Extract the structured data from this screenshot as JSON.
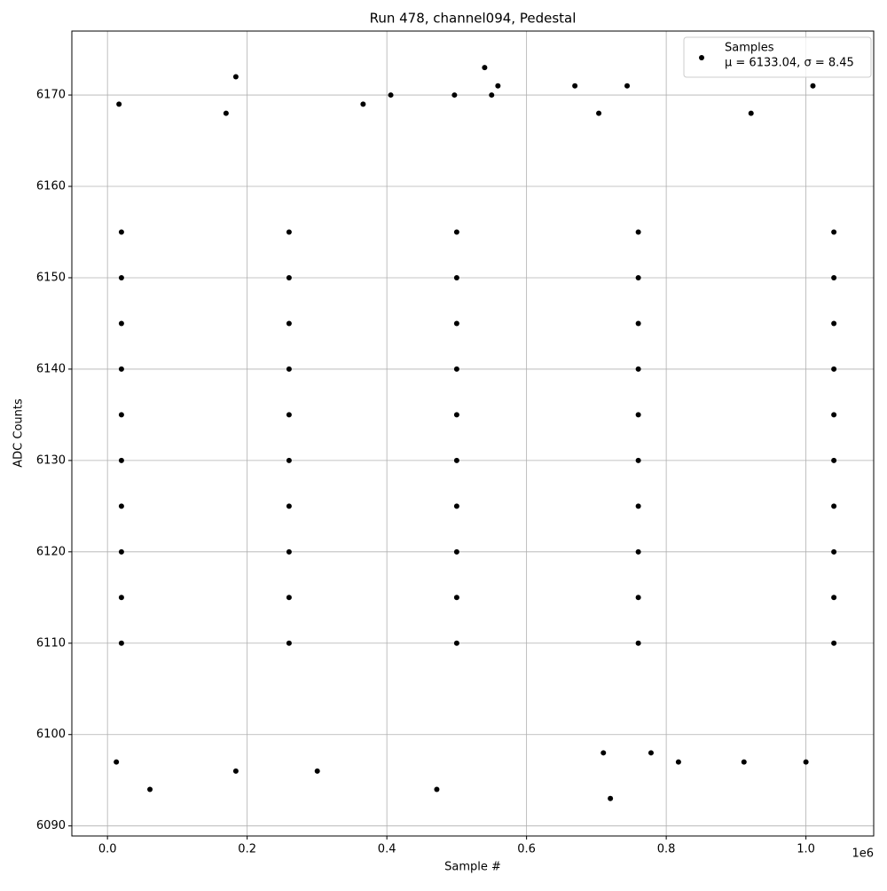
{
  "chart_data": {
    "type": "scatter",
    "title": "Run 478, channel094, Pedestal",
    "x_label": "Sample #",
    "y_label": "ADC Counts",
    "x_offset_label": "1e6",
    "xlim": [
      -51000,
      1097000
    ],
    "ylim": [
      6088.9,
      6177.0
    ],
    "xticks": [
      {
        "value": 0,
        "label": "0.0"
      },
      {
        "value": 200000,
        "label": "0.2"
      },
      {
        "value": 400000,
        "label": "0.4"
      },
      {
        "value": 600000,
        "label": "0.6"
      },
      {
        "value": 800000,
        "label": "0.8"
      },
      {
        "value": 1000000,
        "label": "1.0"
      }
    ],
    "yticks": [
      6090,
      6100,
      6110,
      6120,
      6130,
      6140,
      6150,
      6160,
      6170
    ],
    "grid": true,
    "legend": "upper right",
    "legend_note": "μ = 6133.04, σ = 8.45",
    "series": [
      {
        "name": "Samples",
        "color": "#000000",
        "x": [
          60800,
          183800,
          471500,
          720000,
          300400,
          183800,
          540000,
          550000,
          559000,
          405600,
          496800,
          669200,
          744000,
          1010000,
          366000,
          16500,
          12700,
          169800,
          1000000,
          817500,
          911300,
          710000,
          778200,
          921400,
          703400,
          20000,
          260000,
          500000,
          760000,
          1040000,
          20000,
          260000,
          500000,
          760000,
          1040000,
          20000,
          260000,
          500000,
          760000,
          1040000,
          20000,
          260000,
          500000,
          760000,
          1040000,
          20000,
          260000,
          500000,
          760000,
          1040000,
          20000,
          260000,
          500000,
          760000,
          1040000,
          20000,
          260000,
          500000,
          760000,
          1040000,
          20000,
          260000,
          500000,
          760000,
          1040000,
          20000,
          260000,
          500000,
          760000,
          1040000,
          20000,
          260000,
          500000,
          760000,
          1040000
        ],
        "values": [
          6094,
          6172,
          6094,
          6093,
          6096,
          6096,
          6173,
          6170,
          6171,
          6170,
          6170,
          6171,
          6171,
          6171,
          6169,
          6169,
          6097,
          6168,
          6097,
          6097,
          6097,
          6098,
          6098,
          6168,
          6168,
          6110,
          6110,
          6110,
          6110,
          6110,
          6115,
          6115,
          6115,
          6115,
          6115,
          6120,
          6120,
          6120,
          6120,
          6120,
          6125,
          6125,
          6125,
          6125,
          6125,
          6130,
          6130,
          6130,
          6130,
          6130,
          6135,
          6135,
          6135,
          6135,
          6135,
          6140,
          6140,
          6140,
          6140,
          6140,
          6145,
          6145,
          6145,
          6145,
          6145,
          6150,
          6150,
          6150,
          6150,
          6150,
          6155,
          6155,
          6155,
          6155,
          6155
        ]
      }
    ]
  }
}
